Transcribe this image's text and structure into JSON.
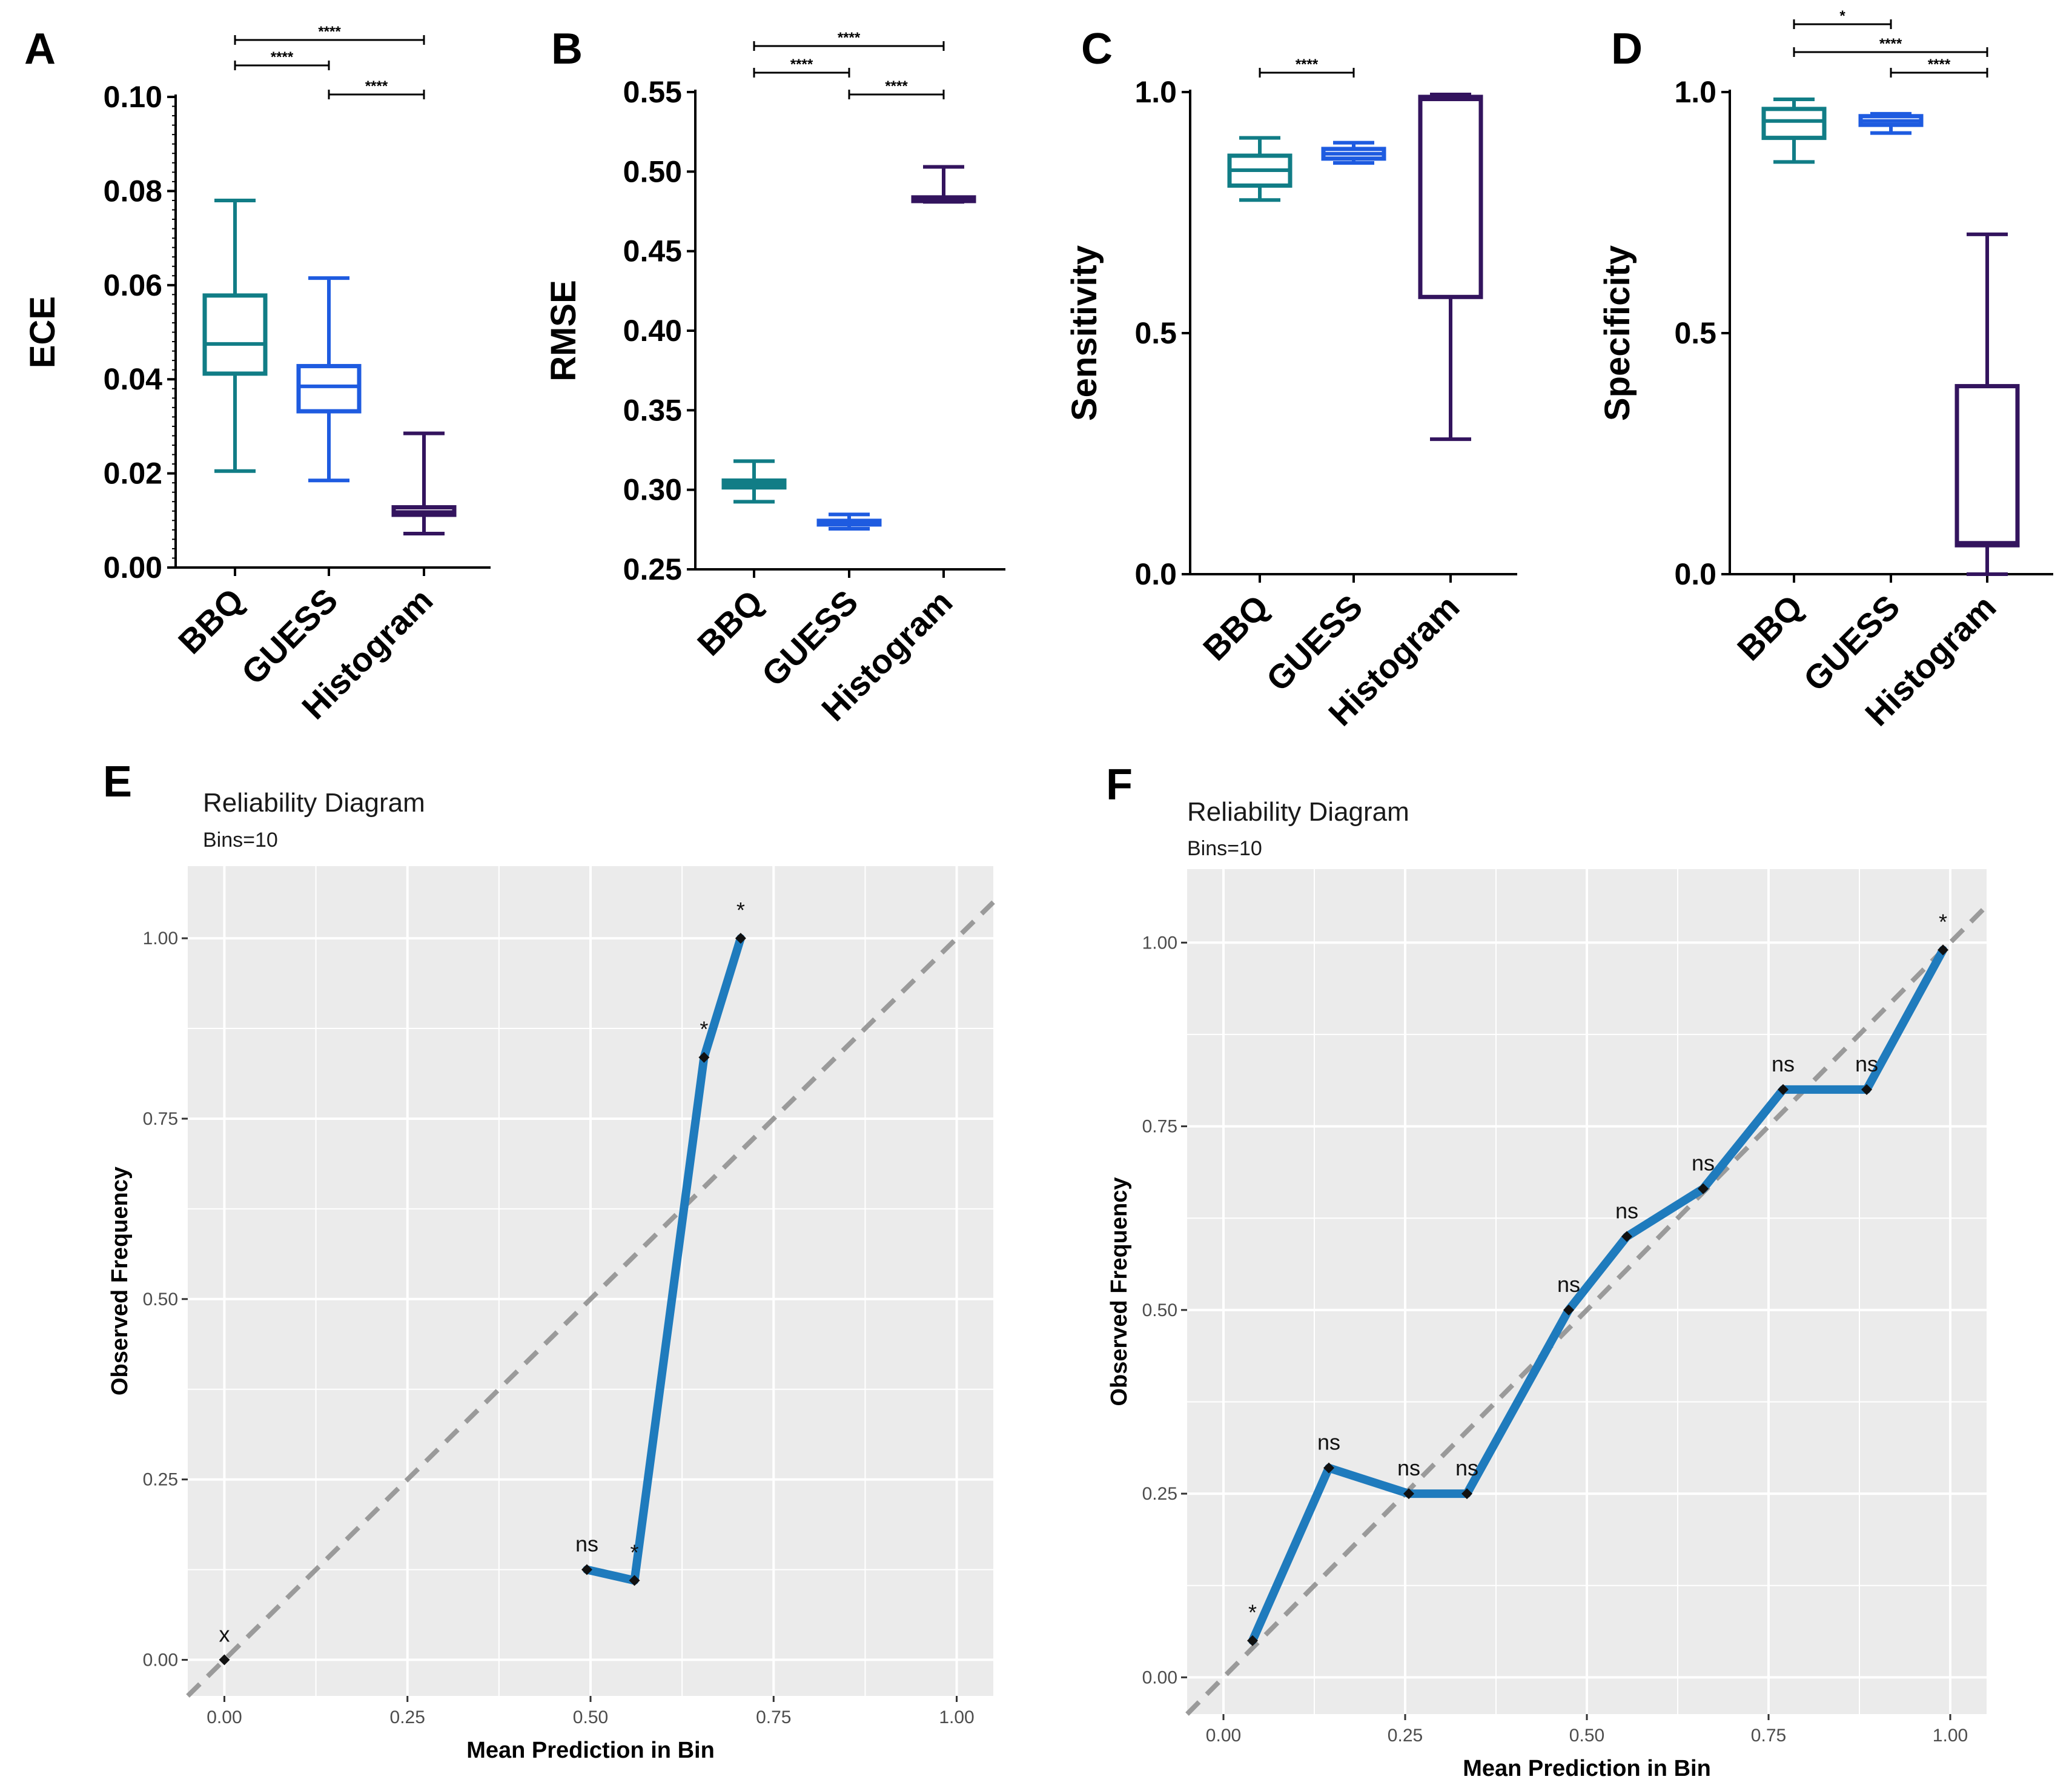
{
  "colors": {
    "BBQ": "#117d86",
    "GUESS": "#1e5be0",
    "Histogram": "#33145e",
    "curve": "#1f7bbd",
    "panel_bg": "#ebebeb",
    "grid": "#ffffff",
    "diagonal": "#9a9a9a"
  },
  "chart_data": [
    {
      "panel": "A",
      "type": "boxplot",
      "ylabel": "ECE",
      "ylim": [
        0,
        0.1
      ],
      "yticks": [
        "0.00",
        "0.02",
        "0.04",
        "0.06",
        "0.08",
        "0.10"
      ],
      "categories": [
        "BBQ",
        "GUESS",
        "Histogram"
      ],
      "boxes": [
        {
          "name": "BBQ",
          "min": 0.0205,
          "q1": 0.0412,
          "median": 0.0475,
          "q3": 0.0578,
          "max": 0.078
        },
        {
          "name": "GUESS",
          "min": 0.0185,
          "q1": 0.0332,
          "median": 0.0385,
          "q3": 0.0428,
          "max": 0.0615
        },
        {
          "name": "Histogram",
          "min": 0.0072,
          "q1": 0.0112,
          "median": 0.0118,
          "q3": 0.0128,
          "max": 0.0285
        }
      ],
      "significance": [
        {
          "from": "BBQ",
          "to": "Histogram",
          "label": "****"
        },
        {
          "from": "BBQ",
          "to": "GUESS",
          "label": "****"
        },
        {
          "from": "GUESS",
          "to": "Histogram",
          "label": "****"
        }
      ]
    },
    {
      "panel": "B",
      "type": "boxplot",
      "ylabel": "RMSE",
      "ylim": [
        0.25,
        0.55
      ],
      "yticks": [
        "0.25",
        "0.30",
        "0.35",
        "0.40",
        "0.45",
        "0.50",
        "0.55"
      ],
      "categories": [
        "BBQ",
        "GUESS",
        "Histogram"
      ],
      "boxes": [
        {
          "name": "BBQ",
          "min": 0.2925,
          "q1": 0.3015,
          "median": 0.3035,
          "q3": 0.3058,
          "max": 0.318
        },
        {
          "name": "GUESS",
          "min": 0.2755,
          "q1": 0.2782,
          "median": 0.279,
          "q3": 0.2805,
          "max": 0.2845
        },
        {
          "name": "Histogram",
          "min": 0.481,
          "q1": 0.4815,
          "median": 0.4825,
          "q3": 0.4838,
          "max": 0.503
        }
      ],
      "significance": [
        {
          "from": "BBQ",
          "to": "Histogram",
          "label": "****"
        },
        {
          "from": "BBQ",
          "to": "GUESS",
          "label": "****"
        },
        {
          "from": "GUESS",
          "to": "Histogram",
          "label": "****"
        }
      ]
    },
    {
      "panel": "C",
      "type": "boxplot",
      "ylabel": "Sensitivity",
      "ylim": [
        0,
        1
      ],
      "yticks": [
        "0.0",
        "0.5",
        "1.0"
      ],
      "categories": [
        "BBQ",
        "GUESS",
        "Histogram"
      ],
      "boxes": [
        {
          "name": "BBQ",
          "min": 0.776,
          "q1": 0.806,
          "median": 0.838,
          "q3": 0.868,
          "max": 0.905
        },
        {
          "name": "GUESS",
          "min": 0.853,
          "q1": 0.862,
          "median": 0.872,
          "q3": 0.882,
          "max": 0.895
        },
        {
          "name": "Histogram",
          "min": 0.28,
          "q1": 0.575,
          "median": 0.985,
          "q3": 0.99,
          "max": 0.995
        }
      ],
      "significance": [
        {
          "from": "BBQ",
          "to": "GUESS",
          "label": "****"
        }
      ]
    },
    {
      "panel": "D",
      "type": "boxplot",
      "ylabel": "Specificity",
      "ylim": [
        0,
        1
      ],
      "yticks": [
        "0.0",
        "0.5",
        "1.0"
      ],
      "categories": [
        "BBQ",
        "GUESS",
        "Histogram"
      ],
      "boxes": [
        {
          "name": "BBQ",
          "min": 0.855,
          "q1": 0.905,
          "median": 0.94,
          "q3": 0.965,
          "max": 0.985
        },
        {
          "name": "GUESS",
          "min": 0.915,
          "q1": 0.932,
          "median": 0.94,
          "q3": 0.95,
          "max": 0.955
        },
        {
          "name": "Histogram",
          "min": 0.0,
          "q1": 0.06,
          "median": 0.065,
          "q3": 0.39,
          "max": 0.705
        }
      ],
      "significance": [
        {
          "from": "BBQ",
          "to": "GUESS",
          "label": "*"
        },
        {
          "from": "BBQ",
          "to": "Histogram",
          "label": "****"
        },
        {
          "from": "GUESS",
          "to": "Histogram",
          "label": "****"
        }
      ]
    },
    {
      "panel": "E",
      "type": "line",
      "title": "Reliability Diagram",
      "subtitle": "Bins=10",
      "xlabel": "Mean Prediction in Bin",
      "ylabel": "Observed Frequency",
      "xlim": [
        -0.05,
        1.05
      ],
      "ylim": [
        -0.05,
        1.1
      ],
      "xticks": [
        "0.00",
        "0.25",
        "0.50",
        "0.75",
        "1.00"
      ],
      "yticks": [
        "0.00",
        "0.25",
        "0.50",
        "0.75",
        "1.00"
      ],
      "diagonal": true,
      "points": [
        {
          "x": 0.0,
          "y": 0.0,
          "label": "x"
        },
        {
          "x": 0.495,
          "y": 0.125,
          "label": "ns"
        },
        {
          "x": 0.56,
          "y": 0.11,
          "label": "*"
        },
        {
          "x": 0.655,
          "y": 0.835,
          "label": "*"
        },
        {
          "x": 0.705,
          "y": 1.0,
          "label": "*"
        }
      ],
      "line_from_index": 1
    },
    {
      "panel": "F",
      "type": "line",
      "title": "Reliability Diagram",
      "subtitle": "Bins=10",
      "xlabel": "Mean Prediction in Bin",
      "ylabel": "Observed Frequency",
      "xlim": [
        -0.05,
        1.05
      ],
      "ylim": [
        -0.05,
        1.1
      ],
      "xticks": [
        "0.00",
        "0.25",
        "0.50",
        "0.75",
        "1.00"
      ],
      "yticks": [
        "0.00",
        "0.25",
        "0.50",
        "0.75",
        "1.00"
      ],
      "diagonal": true,
      "points": [
        {
          "x": 0.04,
          "y": 0.05,
          "label": "*"
        },
        {
          "x": 0.145,
          "y": 0.285,
          "label": "ns"
        },
        {
          "x": 0.255,
          "y": 0.25,
          "label": "ns"
        },
        {
          "x": 0.335,
          "y": 0.25,
          "label": "ns"
        },
        {
          "x": 0.475,
          "y": 0.5,
          "label": "ns"
        },
        {
          "x": 0.555,
          "y": 0.6,
          "label": "ns"
        },
        {
          "x": 0.66,
          "y": 0.665,
          "label": "ns"
        },
        {
          "x": 0.77,
          "y": 0.8,
          "label": "ns"
        },
        {
          "x": 0.885,
          "y": 0.8,
          "label": "ns"
        },
        {
          "x": 0.99,
          "y": 0.99,
          "label": "*"
        }
      ],
      "line_from_index": 0
    }
  ]
}
